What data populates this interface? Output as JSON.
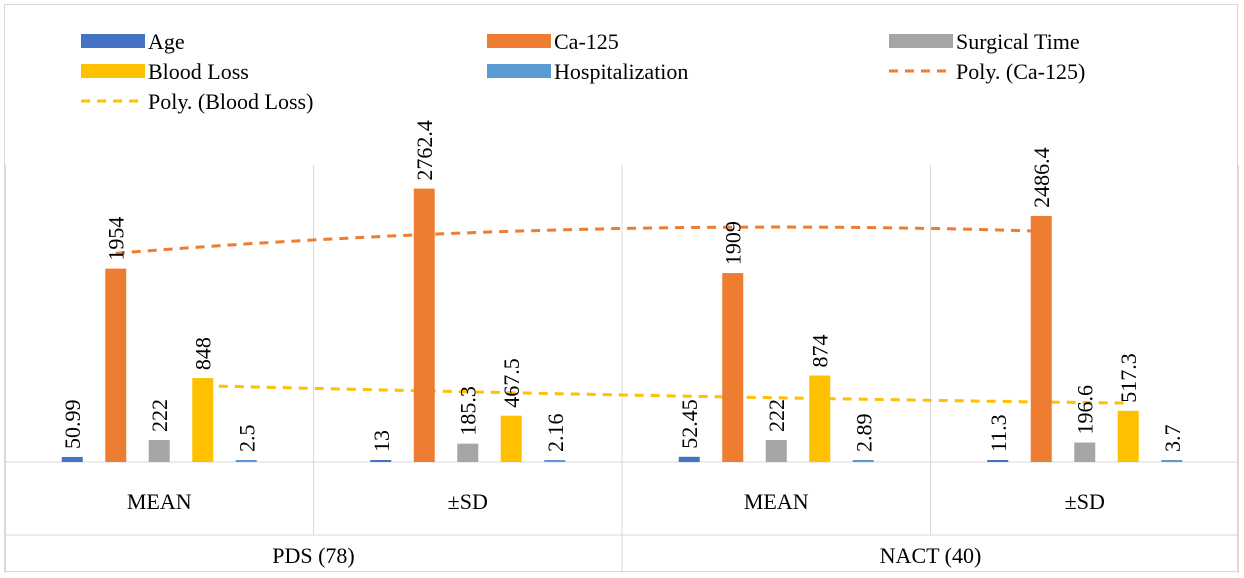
{
  "chart_data": {
    "type": "bar",
    "groups": [
      {
        "label": "PDS (78)",
        "categories": [
          "MEAN",
          "±SD"
        ]
      },
      {
        "label": "NACT (40)",
        "categories": [
          "MEAN",
          "±SD"
        ]
      }
    ],
    "categories": [
      "MEAN",
      "±SD",
      "MEAN",
      "±SD"
    ],
    "series": [
      {
        "name": "Age",
        "color": "#4472C4",
        "values": [
          50.99,
          13,
          52.45,
          11.3
        ],
        "labels": [
          "50.99",
          "13",
          "52.45",
          "11.3"
        ]
      },
      {
        "name": "Ca-125",
        "color": "#ED7D31",
        "values": [
          1954,
          2762.4,
          1909,
          2486.4
        ],
        "labels": [
          "1954",
          "2762.4",
          "1909",
          "2486.4"
        ]
      },
      {
        "name": "Surgical Time",
        "color": "#A5A5A5",
        "values": [
          222,
          185.3,
          222,
          196.6
        ],
        "labels": [
          "222",
          "185.3",
          "222",
          "196.6"
        ]
      },
      {
        "name": "Blood Loss",
        "color": "#FFC000",
        "values": [
          848,
          467.5,
          874,
          517.3
        ],
        "labels": [
          "848",
          "467.5",
          "874",
          "517.3"
        ]
      },
      {
        "name": "Hospitalization",
        "color": "#5B9BD5",
        "values": [
          2.5,
          2.16,
          2.89,
          3.7
        ],
        "labels": [
          "2.5",
          "2.16",
          "2.89",
          "3.7"
        ]
      }
    ],
    "trendlines": [
      {
        "name": "Poly. (Ca-125)",
        "series": "Ca-125",
        "type": "polynomial",
        "color": "#ED7D31"
      },
      {
        "name": "Poly. (Blood Loss)",
        "series": "Blood Loss",
        "type": "polynomial",
        "color": "#FFC000"
      }
    ],
    "legend": [
      "Age",
      "Ca-125",
      "Surgical Time",
      "Blood Loss",
      "Hospitalization",
      "Poly. (Ca-125)",
      "Poly. (Blood Loss)"
    ],
    "legend_position": "top",
    "ylim": [
      0,
      2900
    ],
    "grid": false,
    "y_axis_visible": false
  }
}
